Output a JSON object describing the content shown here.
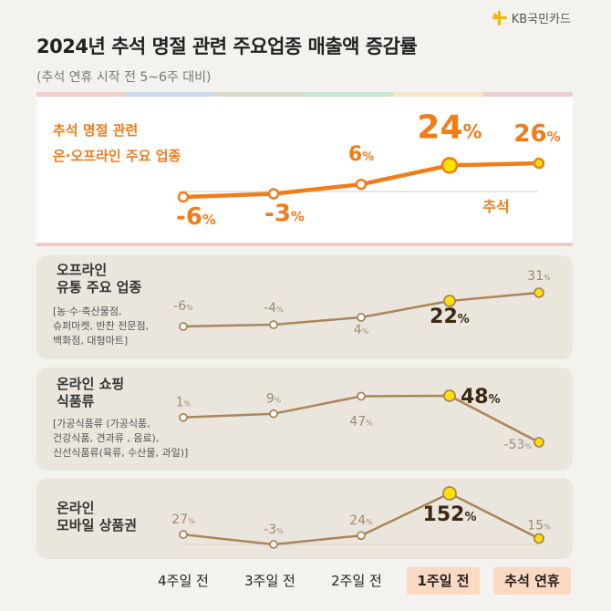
{
  "brand": {
    "logo_text": "KB국민카드",
    "accent": "#f5b400"
  },
  "header": {
    "title": "2024년 추석 명절 관련 주요업종 매출액 증감률",
    "subtitle": "(추석 연휴 시작 전 5~6주 대비)"
  },
  "colors": {
    "hero_line": "#ef7d1a",
    "panel_line": "#a9865a",
    "highlight_dot": "#ffe100",
    "x_highlight_bg": "#fcd9c2"
  },
  "chart_data": [
    {
      "type": "line",
      "title": "추석 명절 관련\n온·오프라인 주요 업종",
      "categories": [
        "4주일 전",
        "3주일 전",
        "2주일 전",
        "1주일 전",
        "추석 연휴"
      ],
      "values": [
        -6,
        -3,
        6,
        24,
        26
      ],
      "annotation": "추석",
      "labels": [
        "-6",
        "-3",
        "6",
        "24",
        "26"
      ]
    },
    {
      "type": "line",
      "title": "오프라인\n유통 주요 업종",
      "note": "[농·수·축산물점,\n슈퍼마켓, 반찬 전문점,\n백화점, 대형마트]",
      "categories": [
        "4주일 전",
        "3주일 전",
        "2주일 전",
        "1주일 전",
        "추석 연휴"
      ],
      "values": [
        -6,
        -4,
        4,
        22,
        31
      ],
      "labels": [
        "-6",
        "-4",
        "4",
        "22",
        "31"
      ]
    },
    {
      "type": "line",
      "title": "온라인 쇼핑\n식품류",
      "note": "[가공식품류 (가공식품,\n건강식품, 견과류 , 음료),\n신선식품류(육류, 수산물, 과일)]",
      "categories": [
        "4주일 전",
        "3주일 전",
        "2주일 전",
        "1주일 전",
        "추석 연휴"
      ],
      "values": [
        1,
        9,
        47,
        48,
        -53
      ],
      "labels": [
        "1",
        "9",
        "47",
        "48",
        "-53"
      ]
    },
    {
      "type": "line",
      "title": "온라인\n모바일 상품권",
      "categories": [
        "4주일 전",
        "3주일 전",
        "2주일 전",
        "1주일 전",
        "추석 연휴"
      ],
      "values": [
        27,
        -3,
        24,
        152,
        15
      ],
      "labels": [
        "27",
        "-3",
        "24",
        "152",
        "15"
      ]
    }
  ],
  "x_axis": {
    "labels": [
      "4주일 전",
      "3주일 전",
      "2주일 전",
      "1주일 전",
      "추석 연휴"
    ],
    "highlighted": [
      false,
      false,
      false,
      true,
      true
    ]
  },
  "unit": "%"
}
